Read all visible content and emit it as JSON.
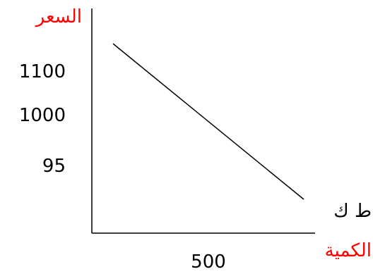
{
  "chart_data": {
    "type": "line",
    "ylabel": "السعر",
    "xlabel": "الكمية",
    "y_ticks": [
      "1100",
      "1000",
      "95"
    ],
    "x_ticks": [
      "500"
    ],
    "series": [
      {
        "label": "ط ك",
        "points": [
          [
            0,
            1100
          ],
          [
            500,
            95
          ]
        ]
      }
    ],
    "colors": {
      "axis_label": "#ff0000",
      "tick": "#000000",
      "line": "#000000",
      "axis": "#000000"
    },
    "grid": false
  }
}
